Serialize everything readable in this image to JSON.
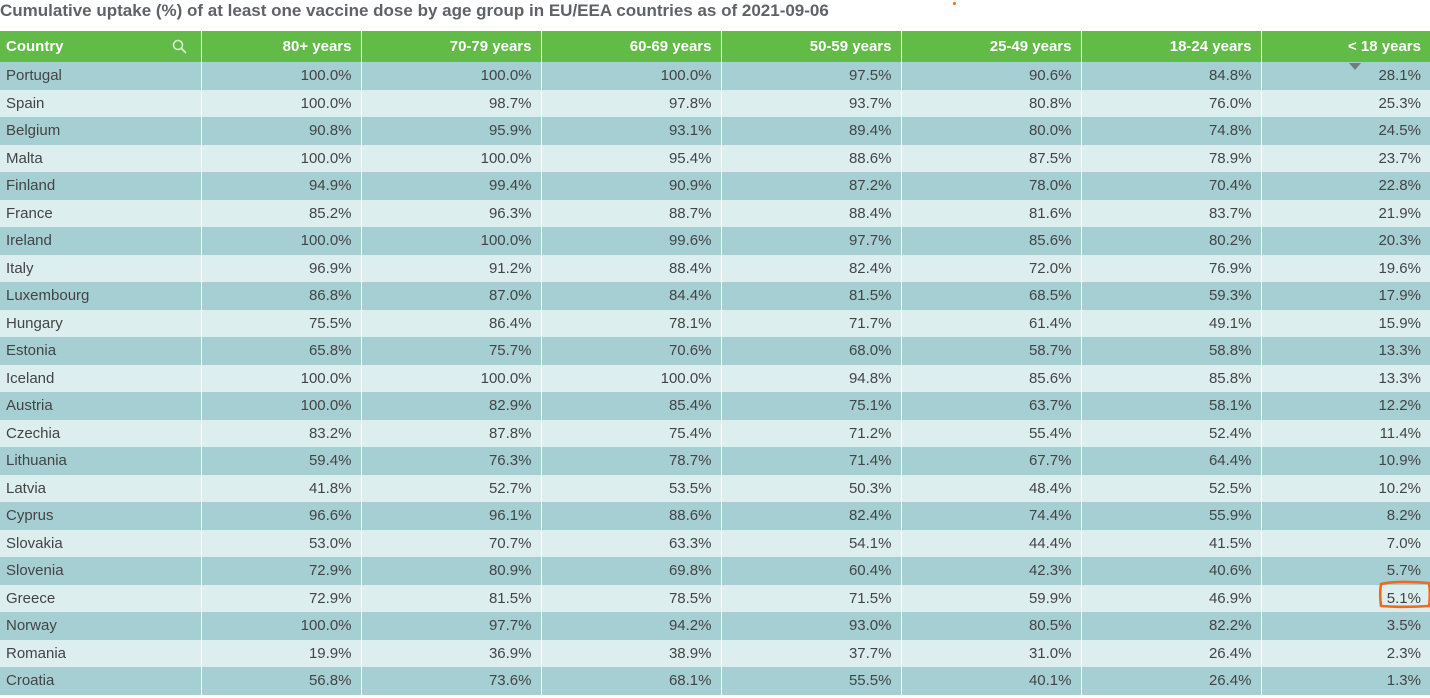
{
  "title": "Cumulative uptake (%) of at least one vaccine dose by age group in EU/EEA countries as of 2021-09-06",
  "colors": {
    "header": "#62bb47",
    "row_odd": "#a6cfd3",
    "row_even": "#ddeeee",
    "highlight": "#f06a1b"
  },
  "icons": {
    "search": "search-icon",
    "sort": "sort-descending-icon"
  },
  "chart_data": {
    "type": "table",
    "title": "Cumulative uptake (%) of at least one vaccine dose by age group in EU/EEA countries as of 2021-09-06",
    "columns": [
      "Country",
      "80+ years",
      "70-79 years",
      "60-69 years",
      "50-59 years",
      "25-49 years",
      "18-24 years",
      "< 18 years"
    ],
    "sorted_by": "< 18 years",
    "sort_order": "descending",
    "highlighted_cell": {
      "row": "Greece",
      "column": "< 18 years",
      "value": "5.1%"
    },
    "rows": [
      [
        "Portugal",
        "100.0%",
        "100.0%",
        "100.0%",
        "97.5%",
        "90.6%",
        "84.8%",
        "28.1%"
      ],
      [
        "Spain",
        "100.0%",
        "98.7%",
        "97.8%",
        "93.7%",
        "80.8%",
        "76.0%",
        "25.3%"
      ],
      [
        "Belgium",
        "90.8%",
        "95.9%",
        "93.1%",
        "89.4%",
        "80.0%",
        "74.8%",
        "24.5%"
      ],
      [
        "Malta",
        "100.0%",
        "100.0%",
        "95.4%",
        "88.6%",
        "87.5%",
        "78.9%",
        "23.7%"
      ],
      [
        "Finland",
        "94.9%",
        "99.4%",
        "90.9%",
        "87.2%",
        "78.0%",
        "70.4%",
        "22.8%"
      ],
      [
        "France",
        "85.2%",
        "96.3%",
        "88.7%",
        "88.4%",
        "81.6%",
        "83.7%",
        "21.9%"
      ],
      [
        "Ireland",
        "100.0%",
        "100.0%",
        "99.6%",
        "97.7%",
        "85.6%",
        "80.2%",
        "20.3%"
      ],
      [
        "Italy",
        "96.9%",
        "91.2%",
        "88.4%",
        "82.4%",
        "72.0%",
        "76.9%",
        "19.6%"
      ],
      [
        "Luxembourg",
        "86.8%",
        "87.0%",
        "84.4%",
        "81.5%",
        "68.5%",
        "59.3%",
        "17.9%"
      ],
      [
        "Hungary",
        "75.5%",
        "86.4%",
        "78.1%",
        "71.7%",
        "61.4%",
        "49.1%",
        "15.9%"
      ],
      [
        "Estonia",
        "65.8%",
        "75.7%",
        "70.6%",
        "68.0%",
        "58.7%",
        "58.8%",
        "13.3%"
      ],
      [
        "Iceland",
        "100.0%",
        "100.0%",
        "100.0%",
        "94.8%",
        "85.6%",
        "85.8%",
        "13.3%"
      ],
      [
        "Austria",
        "100.0%",
        "82.9%",
        "85.4%",
        "75.1%",
        "63.7%",
        "58.1%",
        "12.2%"
      ],
      [
        "Czechia",
        "83.2%",
        "87.8%",
        "75.4%",
        "71.2%",
        "55.4%",
        "52.4%",
        "11.4%"
      ],
      [
        "Lithuania",
        "59.4%",
        "76.3%",
        "78.7%",
        "71.4%",
        "67.7%",
        "64.4%",
        "10.9%"
      ],
      [
        "Latvia",
        "41.8%",
        "52.7%",
        "53.5%",
        "50.3%",
        "48.4%",
        "52.5%",
        "10.2%"
      ],
      [
        "Cyprus",
        "96.6%",
        "96.1%",
        "88.6%",
        "82.4%",
        "74.4%",
        "55.9%",
        "8.2%"
      ],
      [
        "Slovakia",
        "53.0%",
        "70.7%",
        "63.3%",
        "54.1%",
        "44.4%",
        "41.5%",
        "7.0%"
      ],
      [
        "Slovenia",
        "72.9%",
        "80.9%",
        "69.8%",
        "60.4%",
        "42.3%",
        "40.6%",
        "5.7%"
      ],
      [
        "Greece",
        "72.9%",
        "81.5%",
        "78.5%",
        "71.5%",
        "59.9%",
        "46.9%",
        "5.1%"
      ],
      [
        "Norway",
        "100.0%",
        "97.7%",
        "94.2%",
        "93.0%",
        "80.5%",
        "82.2%",
        "3.5%"
      ],
      [
        "Romania",
        "19.9%",
        "36.9%",
        "38.9%",
        "37.7%",
        "31.0%",
        "26.4%",
        "2.3%"
      ],
      [
        "Croatia",
        "56.8%",
        "73.6%",
        "68.1%",
        "55.5%",
        "40.1%",
        "26.4%",
        "1.3%"
      ]
    ]
  }
}
